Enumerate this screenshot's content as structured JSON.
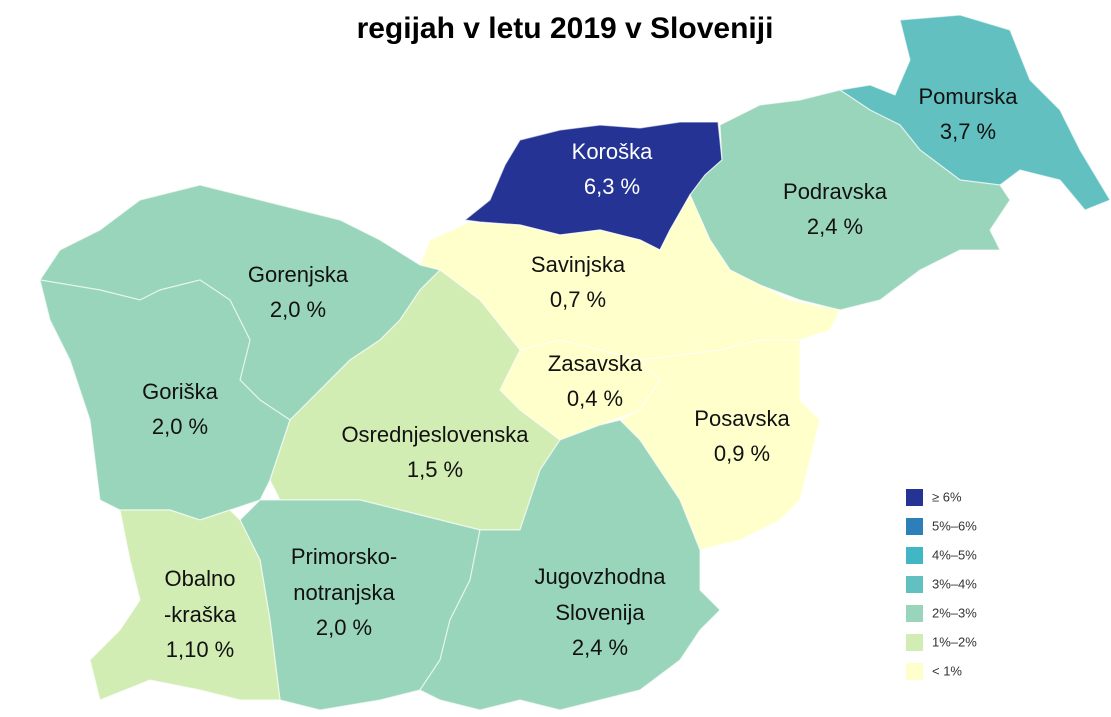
{
  "title": "regijah v letu 2019 v Sloveniji",
  "regions": [
    {
      "name_lines": [
        "Pomurska"
      ],
      "value": 3.7,
      "value_label": "3,7 %",
      "color": "#62c0c1"
    },
    {
      "name_lines": [
        "Koroška"
      ],
      "value": 6.3,
      "value_label": "6,3 %",
      "color": "#253494"
    },
    {
      "name_lines": [
        "Podravska"
      ],
      "value": 2.4,
      "value_label": "2,4 %",
      "color": "#99d5bb"
    },
    {
      "name_lines": [
        "Savinjska"
      ],
      "value": 0.7,
      "value_label": "0,7 %",
      "color": "#ffffcc"
    },
    {
      "name_lines": [
        "Gorenjska"
      ],
      "value": 2.0,
      "value_label": "2,0 %",
      "color": "#99d5bb"
    },
    {
      "name_lines": [
        "Zasavska"
      ],
      "value": 0.4,
      "value_label": "0,4 %",
      "color": "#ffffcc"
    },
    {
      "name_lines": [
        "Goriška"
      ],
      "value": 2.0,
      "value_label": "2,0 %",
      "color": "#99d5bb"
    },
    {
      "name_lines": [
        "Posavska"
      ],
      "value": 0.9,
      "value_label": "0,9 %",
      "color": "#ffffcc"
    },
    {
      "name_lines": [
        "Osrednjeslovenska"
      ],
      "value": 1.5,
      "value_label": "1,5 %",
      "color": "#d2edb3"
    },
    {
      "name_lines": [
        "Primorsko-",
        "notranjska"
      ],
      "value": 2.0,
      "value_label": "2,0 %",
      "color": "#99d5bb"
    },
    {
      "name_lines": [
        "Obalno",
        "-kraška"
      ],
      "value": 1.1,
      "value_label": "1,10 %",
      "color": "#d2edb3"
    },
    {
      "name_lines": [
        "Jugovzhodna",
        "Slovenija"
      ],
      "value": 2.4,
      "value_label": "2,4 %",
      "color": "#99d5bb"
    }
  ],
  "legend": [
    {
      "label": "≥ 6%",
      "color": "#253494"
    },
    {
      "label": "5%–6%",
      "color": "#2c7fb8"
    },
    {
      "label": "4%–5%",
      "color": "#41b6c4"
    },
    {
      "label": "3%–4%",
      "color": "#62c0c1"
    },
    {
      "label": "2%–3%",
      "color": "#99d5bb"
    },
    {
      "label": "1%–2%",
      "color": "#d2edb3"
    },
    {
      "label": "< 1%",
      "color": "#ffffcc"
    }
  ]
}
